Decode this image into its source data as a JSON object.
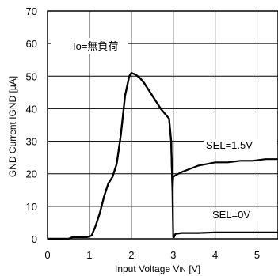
{
  "chart_data": {
    "type": "line",
    "xlabel": "Input Voltage V",
    "xlabel_sub": "IN",
    "xlabel_unit": "[V]",
    "ylabel": "GND Current IGND [μA]",
    "xlim": [
      0,
      5.5
    ],
    "ylim": [
      0,
      70
    ],
    "xticks": [
      0,
      1,
      2,
      3,
      4,
      5
    ],
    "yticks": [
      0,
      10,
      20,
      30,
      40,
      50,
      60,
      70
    ],
    "grid": true,
    "legend": "none",
    "line_color": "#000000",
    "annotations": [
      "Io=無負荷",
      "SEL=1.5V",
      "SEL=0V"
    ],
    "series": [
      {
        "name": "SEL=1.5V",
        "x": [
          0,
          0.5,
          0.6,
          0.8,
          0.95,
          1.05,
          1.15,
          1.25,
          1.35,
          1.45,
          1.55,
          1.65,
          1.75,
          1.85,
          1.95,
          2.0,
          2.1,
          2.2,
          2.3,
          2.4,
          2.5,
          2.6,
          2.7,
          2.8,
          2.9,
          2.95,
          2.98,
          3.0,
          3.05,
          3.2,
          3.4,
          3.6,
          3.8,
          4.0,
          4.3,
          4.6,
          4.9,
          5.2,
          5.5
        ],
        "y": [
          0,
          0,
          0.5,
          0.5,
          0.5,
          1.0,
          4.0,
          8.0,
          13.0,
          17.0,
          19.0,
          23.0,
          32.0,
          44.0,
          50.0,
          51.0,
          50.5,
          49.5,
          48.0,
          46.0,
          44.0,
          42.0,
          40.0,
          38.5,
          37.0,
          30.0,
          15.0,
          19.0,
          19.5,
          20.5,
          21.5,
          22.5,
          23.0,
          23.5,
          23.5,
          24.0,
          24.0,
          24.5,
          24.5
        ]
      },
      {
        "name": "SEL=0V",
        "x": [
          0,
          0.5,
          0.6,
          0.8,
          0.95,
          1.05,
          1.15,
          1.25,
          1.35,
          1.45,
          1.55,
          1.65,
          1.75,
          1.85,
          1.95,
          2.0,
          2.1,
          2.2,
          2.3,
          2.4,
          2.5,
          2.6,
          2.7,
          2.8,
          2.9,
          2.95,
          2.98,
          3.0,
          3.02,
          3.05,
          3.2,
          3.6,
          4.0,
          4.5,
          5.0,
          5.5
        ],
        "y": [
          0,
          0,
          0.5,
          0.5,
          0.5,
          1.0,
          4.0,
          8.0,
          13.0,
          17.0,
          19.0,
          23.0,
          32.0,
          44.0,
          50.0,
          51.0,
          50.5,
          49.5,
          48.0,
          46.0,
          44.0,
          42.0,
          40.0,
          38.5,
          37.0,
          30.0,
          15.0,
          0.5,
          0.5,
          1.5,
          1.8,
          1.8,
          2.0,
          2.0,
          2.0,
          2.0
        ]
      }
    ]
  }
}
